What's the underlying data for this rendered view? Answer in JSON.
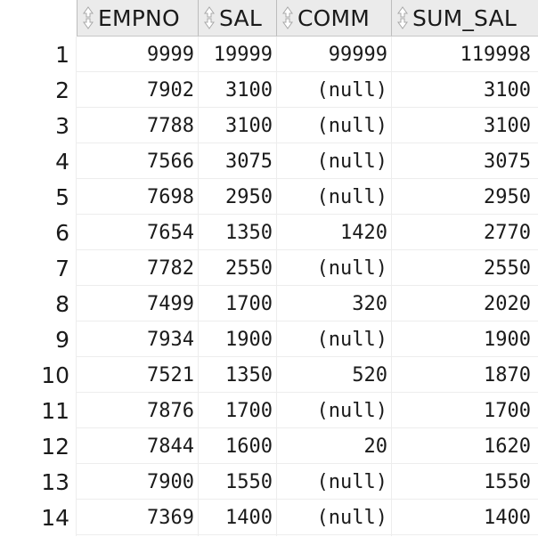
{
  "columns": [
    {
      "key": "empno",
      "label": "EMPNO"
    },
    {
      "key": "sal",
      "label": "SAL"
    },
    {
      "key": "comm",
      "label": "COMM"
    },
    {
      "key": "sum_sal",
      "label": "SUM_SAL"
    }
  ],
  "rows": [
    {
      "num": "1",
      "empno": "9999",
      "sal": "19999",
      "comm": "99999",
      "sum_sal": "119998"
    },
    {
      "num": "2",
      "empno": "7902",
      "sal": "3100",
      "comm": "(null)",
      "sum_sal": "3100"
    },
    {
      "num": "3",
      "empno": "7788",
      "sal": "3100",
      "comm": "(null)",
      "sum_sal": "3100"
    },
    {
      "num": "4",
      "empno": "7566",
      "sal": "3075",
      "comm": "(null)",
      "sum_sal": "3075"
    },
    {
      "num": "5",
      "empno": "7698",
      "sal": "2950",
      "comm": "(null)",
      "sum_sal": "2950"
    },
    {
      "num": "6",
      "empno": "7654",
      "sal": "1350",
      "comm": "1420",
      "sum_sal": "2770"
    },
    {
      "num": "7",
      "empno": "7782",
      "sal": "2550",
      "comm": "(null)",
      "sum_sal": "2550"
    },
    {
      "num": "8",
      "empno": "7499",
      "sal": "1700",
      "comm": "320",
      "sum_sal": "2020"
    },
    {
      "num": "9",
      "empno": "7934",
      "sal": "1900",
      "comm": "(null)",
      "sum_sal": "1900"
    },
    {
      "num": "10",
      "empno": "7521",
      "sal": "1350",
      "comm": "520",
      "sum_sal": "1870"
    },
    {
      "num": "11",
      "empno": "7876",
      "sal": "1700",
      "comm": "(null)",
      "sum_sal": "1700"
    },
    {
      "num": "12",
      "empno": "7844",
      "sal": "1600",
      "comm": "20",
      "sum_sal": "1620"
    },
    {
      "num": "13",
      "empno": "7900",
      "sal": "1550",
      "comm": "(null)",
      "sum_sal": "1550"
    },
    {
      "num": "14",
      "empno": "7369",
      "sal": "1400",
      "comm": "(null)",
      "sum_sal": "1400"
    }
  ],
  "icons": {
    "sort": "sort-arrows-icon"
  }
}
